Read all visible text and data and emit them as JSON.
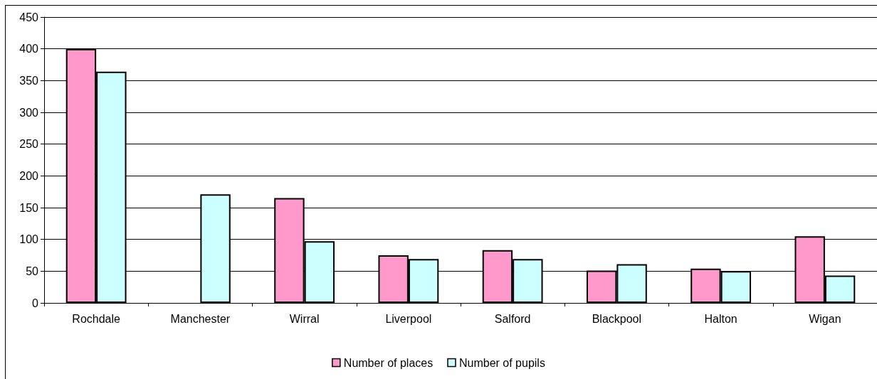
{
  "chart_data": {
    "type": "bar",
    "categories": [
      "Rochdale",
      "Manchester",
      "Wirral",
      "Liverpool",
      "Salford",
      "Blackpool",
      "Halton",
      "Wigan"
    ],
    "series": [
      {
        "name": "Number of places",
        "color": "#ff99cc",
        "values": [
          400,
          null,
          165,
          75,
          83,
          51,
          54,
          105
        ]
      },
      {
        "name": "Number of pupils",
        "color": "#ccffff",
        "values": [
          364,
          171,
          97,
          69,
          69,
          61,
          50,
          43
        ]
      }
    ],
    "ylim": [
      0,
      450
    ],
    "yticks": [
      0,
      50,
      100,
      150,
      200,
      250,
      300,
      350,
      400,
      450
    ],
    "grid": "y",
    "legend": "bottom"
  }
}
